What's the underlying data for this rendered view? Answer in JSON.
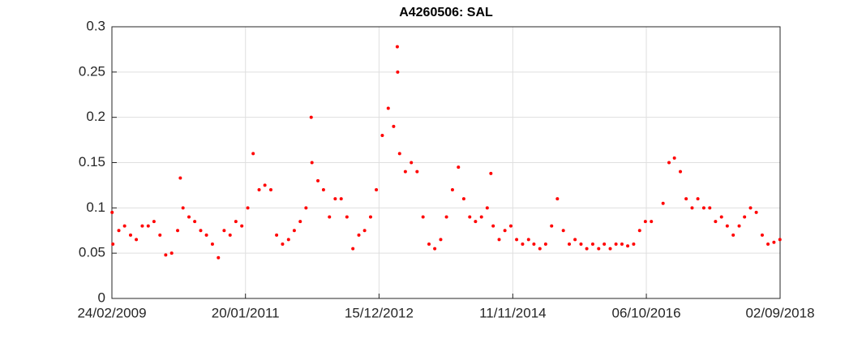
{
  "chart_data": {
    "type": "scatter",
    "title": "A4260506: SAL",
    "color": "#ff0000",
    "grid": true,
    "xlim": [
      "2009-02-24",
      "2018-09-02"
    ],
    "xticks": [
      {
        "value": "2009-02-24",
        "label": "24/02/2009"
      },
      {
        "value": "2011-01-20",
        "label": "20/01/2011"
      },
      {
        "value": "2012-12-15",
        "label": "15/12/2012"
      },
      {
        "value": "2014-11-11",
        "label": "11/11/2014"
      },
      {
        "value": "2016-10-06",
        "label": "06/10/2016"
      },
      {
        "value": "2018-09-02",
        "label": "02/09/2018"
      }
    ],
    "ylim": [
      0,
      0.3
    ],
    "yticks": [
      0,
      0.05,
      0.1,
      0.15,
      0.2,
      0.25,
      0.3
    ],
    "x": [
      "2009-02-25",
      "2009-03-01",
      "2009-04-01",
      "2009-05-01",
      "2009-06-01",
      "2009-07-01",
      "2009-08-01",
      "2009-09-01",
      "2009-10-01",
      "2009-11-01",
      "2009-12-01",
      "2010-01-01",
      "2010-02-01",
      "2010-02-15",
      "2010-03-01",
      "2010-04-01",
      "2010-05-01",
      "2010-06-01",
      "2010-07-01",
      "2010-08-01",
      "2010-09-01",
      "2010-10-01",
      "2010-11-01",
      "2010-12-01",
      "2011-01-01",
      "2011-02-01",
      "2011-03-01",
      "2011-04-01",
      "2011-05-01",
      "2011-06-01",
      "2011-07-01",
      "2011-08-01",
      "2011-09-01",
      "2011-10-01",
      "2011-11-01",
      "2011-12-01",
      "2011-12-28",
      "2012-01-01",
      "2012-02-01",
      "2012-03-01",
      "2012-04-01",
      "2012-05-01",
      "2012-06-01",
      "2012-07-01",
      "2012-08-01",
      "2012-09-01",
      "2012-10-01",
      "2012-11-01",
      "2012-12-01",
      "2013-01-01",
      "2013-02-01",
      "2013-03-01",
      "2013-03-20",
      "2013-03-22",
      "2013-04-01",
      "2013-05-01",
      "2013-06-01",
      "2013-07-01",
      "2013-08-01",
      "2013-09-01",
      "2013-10-01",
      "2013-11-01",
      "2013-12-01",
      "2014-01-01",
      "2014-02-01",
      "2014-03-01",
      "2014-04-01",
      "2014-05-01",
      "2014-06-01",
      "2014-07-01",
      "2014-07-20",
      "2014-08-01",
      "2014-09-01",
      "2014-10-01",
      "2014-11-01",
      "2014-12-01",
      "2015-01-01",
      "2015-02-01",
      "2015-03-01",
      "2015-04-01",
      "2015-05-01",
      "2015-06-01",
      "2015-07-01",
      "2015-08-01",
      "2015-09-01",
      "2015-10-01",
      "2015-11-01",
      "2015-12-01",
      "2016-01-01",
      "2016-02-01",
      "2016-03-01",
      "2016-04-01",
      "2016-05-01",
      "2016-06-01",
      "2016-07-01",
      "2016-08-01",
      "2016-09-01",
      "2016-10-01",
      "2016-11-01",
      "2017-01-01",
      "2017-02-01",
      "2017-03-01",
      "2017-04-01",
      "2017-05-01",
      "2017-06-01",
      "2017-07-01",
      "2017-08-01",
      "2017-09-01",
      "2017-10-01",
      "2017-11-01",
      "2017-12-01",
      "2018-01-01",
      "2018-02-01",
      "2018-03-01",
      "2018-04-01",
      "2018-05-01",
      "2018-06-01",
      "2018-07-01",
      "2018-08-01",
      "2018-09-01"
    ],
    "values": [
      0.095,
      0.06,
      0.075,
      0.08,
      0.07,
      0.065,
      0.08,
      0.08,
      0.085,
      0.07,
      0.048,
      0.05,
      0.075,
      0.133,
      0.1,
      0.09,
      0.085,
      0.075,
      0.07,
      0.06,
      0.045,
      0.075,
      0.07,
      0.085,
      0.08,
      0.1,
      0.16,
      0.12,
      0.125,
      0.12,
      0.07,
      0.06,
      0.065,
      0.075,
      0.085,
      0.1,
      0.2,
      0.15,
      0.13,
      0.12,
      0.09,
      0.11,
      0.11,
      0.09,
      0.055,
      0.07,
      0.075,
      0.09,
      0.12,
      0.18,
      0.21,
      0.19,
      0.278,
      0.25,
      0.16,
      0.14,
      0.15,
      0.14,
      0.09,
      0.06,
      0.055,
      0.065,
      0.09,
      0.12,
      0.145,
      0.11,
      0.09,
      0.085,
      0.09,
      0.1,
      0.138,
      0.08,
      0.065,
      0.075,
      0.08,
      0.065,
      0.06,
      0.065,
      0.06,
      0.055,
      0.06,
      0.08,
      0.11,
      0.075,
      0.06,
      0.065,
      0.06,
      0.055,
      0.06,
      0.055,
      0.06,
      0.055,
      0.06,
      0.06,
      0.058,
      0.06,
      0.075,
      0.085,
      0.085,
      0.105,
      0.15,
      0.155,
      0.14,
      0.11,
      0.1,
      0.11,
      0.1,
      0.1,
      0.085,
      0.09,
      0.08,
      0.07,
      0.08,
      0.09,
      0.1,
      0.095,
      0.07,
      0.06,
      0.062,
      0.065
    ]
  }
}
